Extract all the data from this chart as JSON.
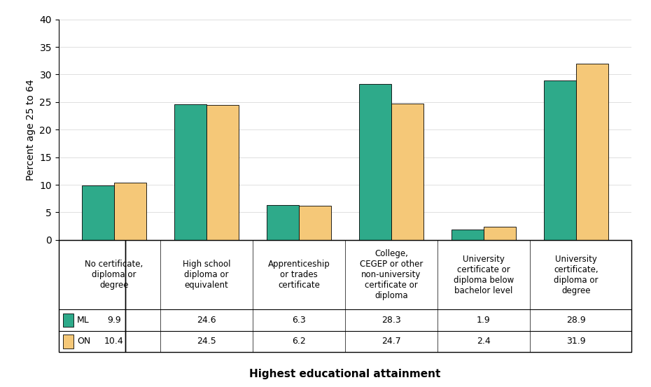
{
  "categories": [
    "No certificate,\ndiploma or\ndegree",
    "High school\ndiploma or\nequivalent",
    "Apprenticeship\nor trades\ncertificate",
    "College,\nCEGEP or other\nnon-university\ncertificate or\ndiploma",
    "University\ncertificate or\ndiploma below\nbachelor level",
    "University\ncertificate,\ndiploma or\ndegree"
  ],
  "ml_values": [
    9.9,
    24.6,
    6.3,
    28.3,
    1.9,
    28.9
  ],
  "on_values": [
    10.4,
    24.5,
    6.2,
    24.7,
    2.4,
    31.9
  ],
  "ml_color": "#2EAA8A",
  "on_color": "#F5C878",
  "ml_label": "ML",
  "on_label": "ON",
  "ylabel": "Percent age 25 to 64",
  "xlabel": "Highest educational attainment",
  "ylim": [
    0,
    40
  ],
  "yticks": [
    0,
    5,
    10,
    15,
    20,
    25,
    30,
    35,
    40
  ],
  "bar_width": 0.35,
  "table_ml_values": [
    "9.9",
    "24.6",
    "6.3",
    "28.3",
    "1.9",
    "28.9"
  ],
  "table_on_values": [
    "10.4",
    "24.5",
    "6.2",
    "24.7",
    "2.4",
    "31.9"
  ]
}
